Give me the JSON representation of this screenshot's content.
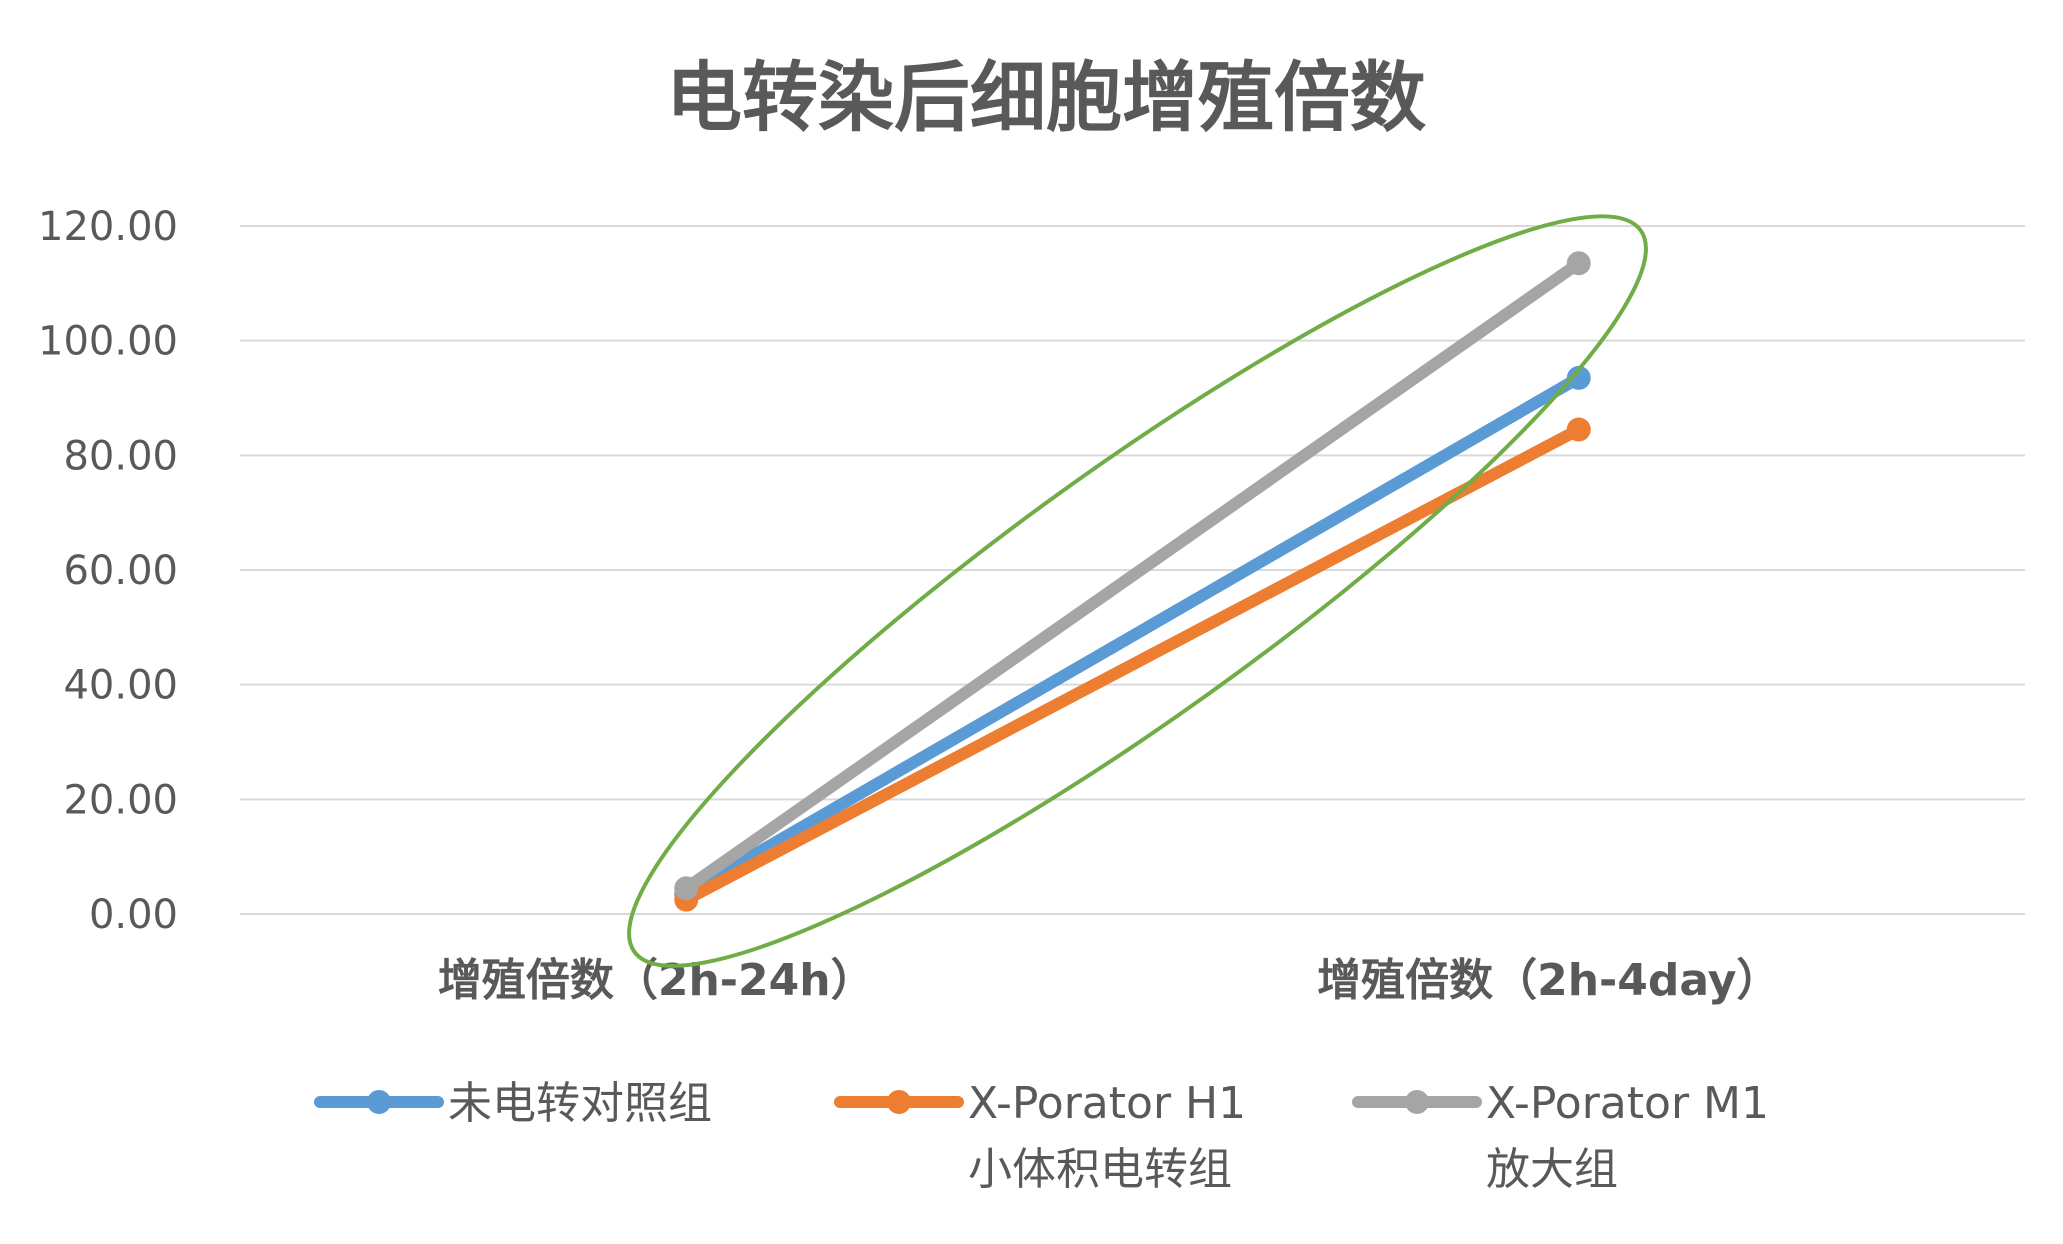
{
  "chart_data": {
    "type": "line",
    "title": "电转染后细胞增殖倍数",
    "xlabel": "",
    "ylabel": "",
    "categories": [
      "增殖倍数（2h-24h）",
      "增殖倍数（2h-4day）"
    ],
    "ylim": [
      0,
      120
    ],
    "yticks": [
      0,
      20,
      40,
      60,
      80,
      100,
      120
    ],
    "ytick_labels": [
      "0.00",
      "20.00",
      "40.00",
      "60.00",
      "80.00",
      "100.00",
      "120.00"
    ],
    "grid": true,
    "legend_position": "bottom",
    "series": [
      {
        "name": "未电转对照组",
        "name_lines": [
          "未电转对照组"
        ],
        "values": [
          3.5,
          93.5
        ],
        "color": "#5B9BD5"
      },
      {
        "name": "X-Porator H1 小体积电转组",
        "name_lines": [
          "X-Porator H1",
          "小体积电转组"
        ],
        "values": [
          2.5,
          84.5
        ],
        "color": "#ED7D31"
      },
      {
        "name": "X-Porator M1 放大组",
        "name_lines": [
          "X-Porator M1",
          "放大组"
        ],
        "values": [
          4.5,
          113.5
        ],
        "color": "#A5A5A5"
      }
    ],
    "annotation": {
      "shape": "ellipse",
      "color": "#70AD47"
    }
  }
}
